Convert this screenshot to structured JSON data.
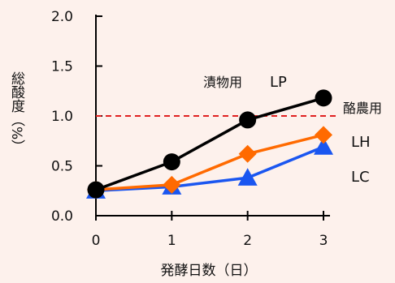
{
  "chart_data": {
    "type": "line",
    "xlabel": "発酵日数（日）",
    "ylabel": "総酸度（%）",
    "x": [
      0,
      1,
      2,
      3
    ],
    "xlim": [
      0,
      3
    ],
    "ylim": [
      0,
      2.0
    ],
    "x_ticks": [
      "0",
      "1",
      "2",
      "3"
    ],
    "y_ticks": [
      "0.0",
      "0.5",
      "1.0",
      "1.5",
      "2.0"
    ],
    "grid": false,
    "series": [
      {
        "name": "LP",
        "label_prefix": "漬物用",
        "values": [
          0.26,
          0.54,
          0.96,
          1.18
        ],
        "color": "#000000",
        "marker": "circle"
      },
      {
        "name": "LH",
        "label_prefix": "酪農用",
        "values": [
          0.26,
          0.31,
          0.62,
          0.81
        ],
        "color": "#ff6a00",
        "marker": "diamond"
      },
      {
        "name": "LC",
        "label_prefix": "",
        "values": [
          0.25,
          0.29,
          0.38,
          0.69
        ],
        "color": "#1a56f0",
        "marker": "triangle"
      }
    ],
    "reference_line": {
      "y": 1.0,
      "color": "#e02020",
      "style": "dashed"
    }
  }
}
